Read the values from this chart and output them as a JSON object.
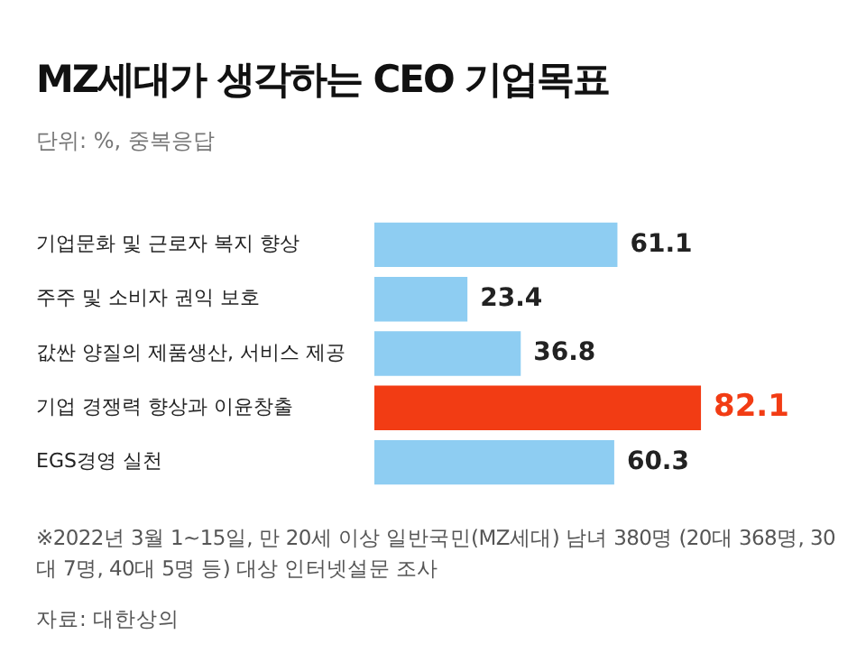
{
  "chart_data": {
    "type": "bar",
    "orientation": "horizontal",
    "title": "MZ세대가 생각하는 CEO 기업목표",
    "subtitle": "단위: %, 중복응답",
    "categories": [
      "기업문화 및 근로자 복지 향상",
      "주주 및 소비자 권익 보호",
      "값싼 양질의 제품생산, 서비스 제공",
      "기업 경쟁력 향상과 이윤창출",
      "EGS경영 실천"
    ],
    "values": [
      61.1,
      23.4,
      36.8,
      82.1,
      60.3
    ],
    "colors": [
      "#8ecdf2",
      "#8ecdf2",
      "#8ecdf2",
      "#f23c14",
      "#8ecdf2"
    ],
    "data_labels": true,
    "legend": false,
    "annotations": [
      "※2022년 3월 1~15일, 만 20세 이상 일반국민(MZ세대) 남녀 380명 (20대 368명, 30대 7명, 40대 5명 등) 대상 인터넷설문 조사",
      "자료: 대한상의"
    ]
  }
}
